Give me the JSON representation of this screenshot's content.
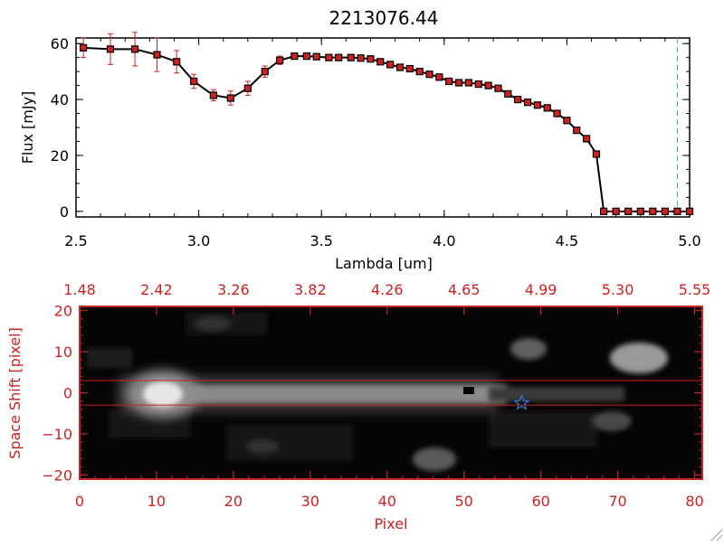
{
  "chart_data": [
    {
      "type": "line",
      "title": "2213076.44",
      "xlabel": "Lambda [um]",
      "ylabel": "Flux [mJy]",
      "xlim": [
        2.5,
        5.0
      ],
      "ylim": [
        -2,
        62
      ],
      "x_ticks": [
        2.5,
        3.0,
        3.5,
        4.0,
        4.5,
        5.0
      ],
      "x_tick_labels": [
        "2.5",
        "3.0",
        "3.5",
        "4.0",
        "4.5",
        "5.0"
      ],
      "y_ticks": [
        0,
        20,
        40,
        60
      ],
      "y_tick_labels": [
        "0",
        "20",
        "40",
        "60"
      ],
      "reference_line_x": 4.95,
      "series": [
        {
          "x": [
            2.53,
            2.64,
            2.74,
            2.83,
            2.91,
            2.98,
            3.06,
            3.13,
            3.2,
            3.27,
            3.33,
            3.39,
            3.44,
            3.48,
            3.53,
            3.57,
            3.62,
            3.66,
            3.7,
            3.74,
            3.78,
            3.82,
            3.86,
            3.9,
            3.94,
            3.98,
            4.02,
            4.06,
            4.1,
            4.14,
            4.18,
            4.22,
            4.26,
            4.3,
            4.34,
            4.38,
            4.42,
            4.46,
            4.5,
            4.54,
            4.58,
            4.62,
            4.65,
            4.7,
            4.75,
            4.8,
            4.85,
            4.9,
            4.95,
            5.0
          ],
          "values": [
            58.5,
            58,
            58,
            56,
            53.5,
            46.5,
            41.5,
            40.5,
            44,
            50,
            54,
            55.5,
            55.5,
            55.3,
            55,
            55,
            55,
            54.8,
            54.5,
            53.5,
            52.5,
            51.5,
            51,
            50,
            49,
            48,
            46.5,
            46,
            46,
            45.5,
            45,
            44,
            42,
            40,
            39,
            38,
            37,
            35,
            32.5,
            29,
            26,
            20.5,
            0,
            0,
            0,
            0,
            0,
            0,
            0,
            0
          ],
          "errors": [
            3.5,
            5.5,
            6,
            6,
            4,
            2.5,
            2,
            2.5,
            2.5,
            2,
            1.5,
            1,
            1,
            1,
            1,
            1,
            1,
            1,
            1,
            1,
            1,
            1,
            1,
            1,
            1,
            1,
            1,
            1,
            1,
            1,
            1,
            1,
            1,
            1,
            1,
            1,
            1,
            1,
            1,
            1,
            1,
            1,
            0,
            0,
            0,
            0,
            0,
            0,
            0,
            0
          ]
        }
      ]
    },
    {
      "type": "heatmap",
      "xlabel": "Pixel",
      "ylabel": "Space Shift [pixel]",
      "xlim": [
        0,
        81
      ],
      "ylim": [
        -21,
        21
      ],
      "x_ticks": [
        0,
        10,
        20,
        30,
        40,
        50,
        60,
        70,
        80
      ],
      "x_tick_labels": [
        "0",
        "10",
        "20",
        "30",
        "40",
        "50",
        "60",
        "70",
        "80"
      ],
      "y_ticks": [
        -20,
        -10,
        0,
        10,
        20
      ],
      "y_tick_labels": [
        "−20",
        "−10",
        "0",
        "10",
        "20"
      ],
      "top_axis_tick_labels": [
        "1.48",
        "2.42",
        "3.26",
        "3.82",
        "4.26",
        "4.65",
        "4.99",
        "5.30",
        "5.55"
      ],
      "slit_lines_y": [
        3,
        -3
      ],
      "marker_star": [
        57.5,
        -2.5
      ],
      "grid": false
    }
  ],
  "colors": {
    "axis_red": "#cc2222",
    "marker_red": "#cc2222",
    "line_black": "#000000",
    "star_blue": "#3a78e0",
    "reference_teal": "#3aa6a0"
  }
}
